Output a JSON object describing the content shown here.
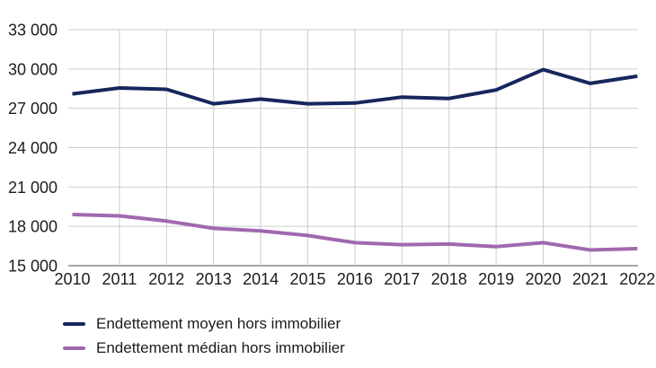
{
  "chart_data": {
    "type": "line",
    "title": "",
    "x": [
      2010,
      2011,
      2012,
      2013,
      2014,
      2015,
      2016,
      2017,
      2018,
      2019,
      2020,
      2021,
      2022
    ],
    "series": [
      {
        "name": "Endettement moyen hors immobilier",
        "color": "#17265c",
        "values": [
          28100,
          28550,
          28450,
          27350,
          27700,
          27350,
          27400,
          27850,
          27750,
          28400,
          29950,
          28900,
          29450
        ]
      },
      {
        "name": "Endettement médian hors immobilier",
        "color": "#a168af",
        "values": [
          18900,
          18800,
          18400,
          17850,
          17650,
          17300,
          16750,
          16600,
          16650,
          16450,
          16750,
          16200,
          16300
        ]
      }
    ],
    "ylim": [
      15000,
      33000
    ],
    "ytick_step": 3000,
    "ytick_labels": [
      "15 000",
      "18 000",
      "21 000",
      "24 000",
      "27 000",
      "30 000",
      "33 000"
    ],
    "grid": true,
    "legend_position": "bottom-left",
    "xlabel": "",
    "ylabel": "",
    "colors": {
      "grid": "#cdcdcd",
      "axis": "#8a8a8a",
      "text": "#1c1c1c"
    }
  }
}
